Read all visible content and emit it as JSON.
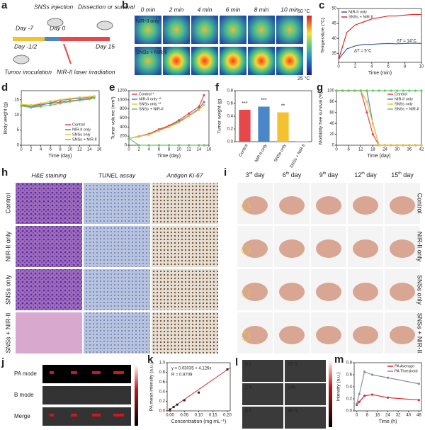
{
  "panels": {
    "a": {
      "label": "a",
      "injection": "SNSs injection",
      "day_m7": "Day -7",
      "day_0": "Day 0",
      "end": "Dissection or survival",
      "day_m12": "Day -1/2",
      "day_15": "Day 15",
      "tumor": "Tumor inoculation",
      "laser": "NIR-II laser irradiation"
    },
    "b": {
      "label": "b",
      "times": [
        "0 min",
        "2 min",
        "4 min",
        "6 min",
        "8 min",
        "10 min"
      ],
      "rows": [
        "NIR-II only",
        "SNSs + NIR-II"
      ],
      "scale_max": "50 °C",
      "scale_min": "25 °C"
    },
    "h": {
      "label": "h",
      "columns": [
        "H&E staining",
        "TUNEL assay",
        "Antigen Ki-67"
      ],
      "rows": [
        "Control",
        "NIR-II only",
        "SNSs only",
        "SNSs + NIR-II"
      ]
    },
    "i": {
      "label": "i",
      "days": [
        {
          "num": "3",
          "sup": "rd",
          "word": " day"
        },
        {
          "num": "6",
          "sup": "th",
          "word": " day"
        },
        {
          "num": "9",
          "sup": "th",
          "word": " day"
        },
        {
          "num": "12",
          "sup": "th",
          "word": " day"
        },
        {
          "num": "15",
          "sup": "th",
          "word": " day"
        }
      ],
      "rows": [
        "Control",
        "NIR-II only",
        "SNSs only",
        "SNSs + NIR-II"
      ]
    },
    "j": {
      "label": "j",
      "modes": [
        "PA mode",
        "B mode",
        "Merge"
      ]
    },
    "l": {
      "label": "l",
      "times": [
        "0 h",
        "12 h",
        "2 h",
        "24h",
        "6 h",
        "48 h"
      ]
    }
  },
  "chart_data": [
    {
      "type": "line",
      "label": "c",
      "xlabel": "Time (min)",
      "ylabel": "Temperature (°C)",
      "x": [
        0,
        1,
        2,
        3,
        4,
        5,
        6,
        7,
        8,
        9,
        10
      ],
      "xlim": [
        0,
        10
      ],
      "xticks": [
        0,
        2,
        4,
        6,
        8,
        10
      ],
      "ylim": [
        32,
        50
      ],
      "yticks": [
        35,
        40,
        45,
        50
      ],
      "series": [
        {
          "name": "NIR-II only",
          "color": "#3a5ea8",
          "values": [
            33,
            36.5,
            37.5,
            38,
            38,
            38.2,
            38.3,
            38.2,
            38.3,
            38.4,
            38.3
          ]
        },
        {
          "name": "SNSs + NIR-II",
          "color": "#d62728",
          "values": [
            33,
            42,
            44.5,
            45.5,
            46.5,
            47,
            47.5,
            47.5,
            47.8,
            48,
            48
          ]
        }
      ],
      "annotations": [
        "ΔT = 14°C",
        "ΔT = 5°C"
      ],
      "legend": "upper left"
    },
    {
      "type": "line",
      "label": "d",
      "xlabel": "Time (day)",
      "ylabel": "Body weight (g)",
      "x": [
        0,
        2,
        4,
        6,
        8,
        10,
        12,
        14,
        15
      ],
      "xlim": [
        0,
        16
      ],
      "xticks": [
        0,
        2,
        4,
        6,
        8,
        10,
        12,
        14,
        16
      ],
      "ylim": [
        0,
        18
      ],
      "yticks": [
        0,
        5,
        10,
        15
      ],
      "series": [
        {
          "name": "Control",
          "color": "#e8474a",
          "values": [
            13.2,
            13,
            13.5,
            13.8,
            14.2,
            14.6,
            15,
            15.4,
            16
          ]
        },
        {
          "name": "NIR-II only",
          "color": "#4a86c8",
          "values": [
            13,
            12.6,
            13.2,
            14,
            14.8,
            15.2,
            15.5,
            15.8,
            16
          ]
        },
        {
          "name": "SNSs only",
          "color": "#f2c230",
          "values": [
            13.5,
            13.2,
            13.8,
            14.5,
            15,
            15.4,
            15.8,
            16,
            16.2
          ]
        },
        {
          "name": "SNSs + NIR-II",
          "color": "#6cc46c",
          "values": [
            13,
            12.4,
            12.8,
            13.2,
            13.8,
            14.4,
            14.8,
            15.2,
            15.6
          ]
        }
      ],
      "legend": "lower right"
    },
    {
      "type": "line",
      "label": "e",
      "xlabel": "Time (day)",
      "ylabel": "Tumor volume (mm³)",
      "x": [
        0,
        2,
        4,
        6,
        8,
        10,
        12,
        14,
        15
      ],
      "xlim": [
        0,
        16
      ],
      "xticks": [
        0,
        2,
        4,
        6,
        8,
        10,
        12,
        14,
        16
      ],
      "ylim": [
        0,
        1200
      ],
      "yticks": [
        0,
        200,
        400,
        600,
        800,
        1000,
        1200
      ],
      "series": [
        {
          "name": "Control *",
          "color": "#e8474a",
          "values": [
            150,
            200,
            250,
            350,
            430,
            550,
            700,
            850,
            1100
          ]
        },
        {
          "name": "NIR-II only **",
          "color": "#4a86c8",
          "values": [
            150,
            190,
            240,
            330,
            410,
            520,
            650,
            800,
            950
          ]
        },
        {
          "name": "SNSs only **",
          "color": "#f2c230",
          "values": [
            150,
            200,
            230,
            320,
            400,
            500,
            640,
            780,
            880
          ]
        },
        {
          "name": "SNSs + NIR-II",
          "color": "#6cc46c",
          "values": [
            150,
            0,
            0,
            0,
            0,
            0,
            0,
            0,
            0
          ]
        }
      ],
      "legend": "upper left"
    },
    {
      "type": "bar",
      "label": "f",
      "ylabel": "Tumor weight (g)",
      "categories": [
        "Control",
        "NIR-II only",
        "SNSs only",
        "SNSs + NIR-II"
      ],
      "values": [
        0.5,
        0.55,
        0.46,
        0.005
      ],
      "colors": [
        "#e8474a",
        "#4a86c8",
        "#f2c230",
        "#6cc46c"
      ],
      "value_labels": [
        "***",
        "***",
        "**",
        null
      ],
      "ylim": [
        0,
        0.8
      ],
      "yticks": [
        {
          "value": 0,
          "label": "0.0"
        },
        0.2,
        0.4,
        0.6,
        0.8
      ]
    },
    {
      "type": "line",
      "label": "g",
      "xlabel": "Time (day)",
      "ylabel": "Morbidity free survival (%)",
      "x": [
        0,
        3,
        6,
        9,
        12,
        15,
        18,
        21,
        24,
        27,
        30,
        33,
        36,
        39,
        42
      ],
      "xlim": [
        0,
        42
      ],
      "xticks": [
        0,
        6,
        12,
        18,
        24,
        30,
        36,
        42
      ],
      "ylim": [
        0,
        100
      ],
      "yticks": [
        0,
        20,
        40,
        60,
        80,
        100
      ],
      "series": [
        {
          "name": "Control",
          "color": "#e8474a",
          "values": [
            100,
            100,
            100,
            100,
            100,
            60,
            20,
            0,
            0,
            0,
            0,
            0,
            0,
            0,
            0
          ]
        },
        {
          "name": "NIR-II only",
          "color": "#4a86c8",
          "values": [
            100,
            100,
            100,
            100,
            100,
            100,
            40,
            0,
            0,
            0,
            0,
            0,
            0,
            0,
            0
          ]
        },
        {
          "name": "SNSs only",
          "color": "#f2c230",
          "values": [
            100,
            100,
            100,
            100,
            100,
            80,
            40,
            0,
            0,
            0,
            0,
            0,
            0,
            0,
            0
          ]
        },
        {
          "name": "SNSs + NIR-II",
          "color": "#6cc46c",
          "values": [
            100,
            100,
            100,
            100,
            100,
            100,
            100,
            100,
            100,
            100,
            100,
            100,
            100,
            100,
            100
          ]
        }
      ],
      "legend": "upper right"
    },
    {
      "type": "scatter",
      "label": "k",
      "xlabel": "Concentration (mg mL⁻¹)",
      "ylabel": "PA mean intensity (a.u.)",
      "x": [
        0,
        0.0125,
        0.025,
        0.05,
        0.1,
        0.2
      ],
      "values": [
        0.03,
        0.08,
        0.13,
        0.22,
        0.38,
        0.86
      ],
      "color": "#222",
      "fit": {
        "intercept": 0.03035,
        "slope": 4.126,
        "color": "#d62728"
      },
      "xlim": [
        -0.01,
        0.21
      ],
      "xticks": [
        {
          "value": 0,
          "label": "0.00"
        },
        0.05,
        {
          "value": 0.1,
          "label": "0.10"
        },
        0.15,
        {
          "value": 0.2,
          "label": "0.20"
        }
      ],
      "ylim": [
        0,
        1
      ],
      "yticks": [
        {
          "value": 0,
          "label": "0.0"
        },
        0.2,
        0.4,
        0.6,
        0.8,
        {
          "value": 1,
          "label": "1.0"
        }
      ],
      "annotations": [
        "y = 0.03035 + 4.126x",
        "R = 0.9709"
      ]
    },
    {
      "type": "line",
      "label": "m",
      "xlabel": "Time (h)",
      "ylabel": "Intensity (a.u.)",
      "x": [
        0,
        2,
        6,
        12,
        24,
        48
      ],
      "xlim": [
        -2,
        50
      ],
      "xticks": [
        0,
        8,
        16,
        24,
        32,
        40,
        48
      ],
      "ylim": [
        0,
        0.8
      ],
      "yticks": [
        {
          "value": 0,
          "label": "0.0"
        },
        0.2,
        0.4,
        0.6,
        0.8
      ],
      "series": [
        {
          "name": "PA Average",
          "color": "#d62728",
          "values": [
            0.1,
            0.15,
            0.25,
            0.27,
            0.22,
            0.18
          ]
        },
        {
          "name": "PA Threshold",
          "color": "#8a8fa8",
          "values": [
            0.12,
            0.28,
            0.65,
            0.6,
            0.55,
            0.45
          ]
        }
      ],
      "legend": "upper right"
    }
  ]
}
